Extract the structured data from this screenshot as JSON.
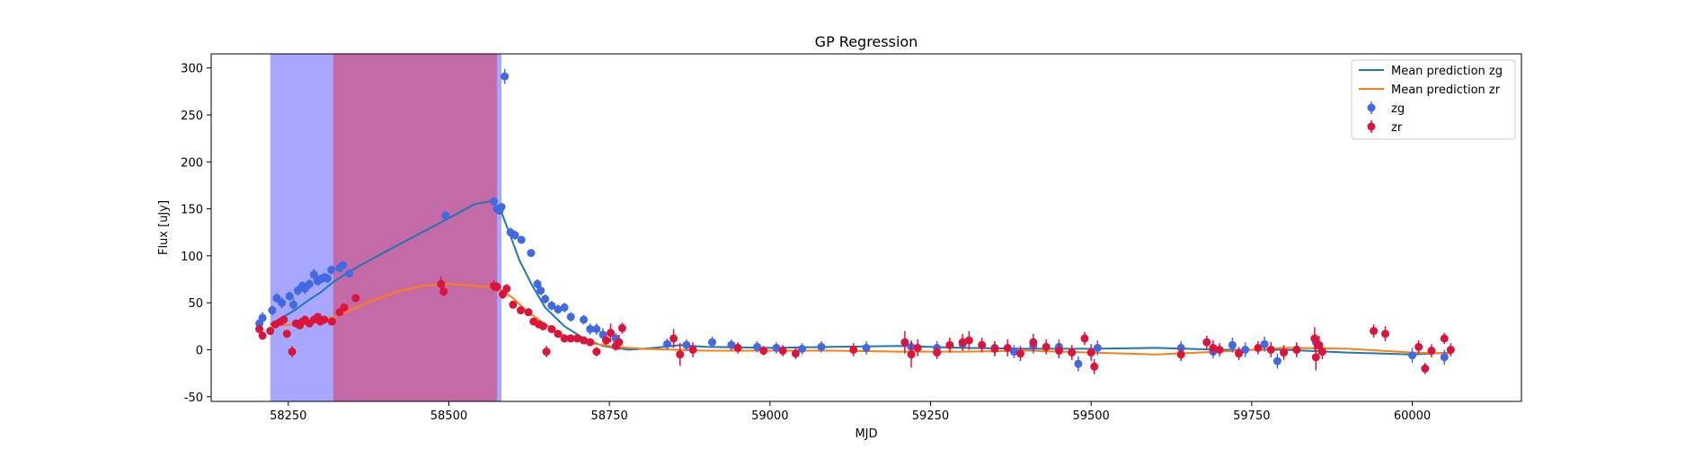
{
  "chart_data": {
    "type": "scatter",
    "title": "GP Regression",
    "xlabel": "MJD",
    "ylabel": "Flux [uJy]",
    "xlim": [
      58130,
      60170
    ],
    "ylim": [
      -55,
      315
    ],
    "xticks": [
      58250,
      58500,
      58750,
      59000,
      59250,
      59500,
      59750,
      60000
    ],
    "yticks": [
      -50,
      0,
      50,
      100,
      150,
      200,
      250,
      300
    ],
    "grid": false,
    "legend_position": "top-right",
    "shaded_regions": [
      {
        "x0": 58222,
        "x1": 58582,
        "color": "#a7a7ff"
      },
      {
        "x0": 58320,
        "x1": 58575,
        "color": "#c46aa6"
      }
    ],
    "series": [
      {
        "name": "Mean prediction zg",
        "kind": "line",
        "color": "#1f77b4",
        "x": [
          58222,
          58240,
          58260,
          58280,
          58300,
          58320,
          58340,
          58360,
          58400,
          58450,
          58500,
          58540,
          58565,
          58580,
          58595,
          58610,
          58630,
          58650,
          58680,
          58710,
          58740,
          58780,
          58820,
          58860,
          58900,
          59000,
          59100,
          59200,
          59300,
          59400,
          59500,
          59600,
          59650,
          59700,
          59800,
          59900,
          60000,
          60060
        ],
        "y": [
          27,
          34,
          42,
          52,
          61,
          72,
          81,
          89,
          104,
          122,
          140,
          155,
          158,
          150,
          123,
          95,
          68,
          45,
          25,
          12,
          4,
          0,
          2,
          5,
          3,
          2,
          3,
          4,
          2,
          1,
          1,
          2,
          1,
          0,
          0,
          -3,
          -5,
          -3
        ]
      },
      {
        "name": "Mean prediction zr",
        "kind": "line",
        "color": "#ff7f0e",
        "x": [
          58222,
          58260,
          58300,
          58340,
          58380,
          58420,
          58460,
          58500,
          58540,
          58570,
          58585,
          58600,
          58620,
          58650,
          58680,
          58720,
          58760,
          58800,
          58900,
          59000,
          59100,
          59200,
          59300,
          59400,
          59500,
          59600,
          59700,
          59800,
          59900,
          60000,
          60060
        ],
        "y": [
          25,
          27,
          30,
          40,
          52,
          62,
          68,
          70,
          68,
          66,
          62,
          55,
          42,
          27,
          15,
          7,
          3,
          1,
          -1,
          -1,
          -1,
          -2,
          -2,
          -1,
          -3,
          -5,
          -2,
          2,
          1,
          -3,
          -4
        ]
      },
      {
        "name": "zg",
        "kind": "errorbar-points",
        "color": "#4169e1",
        "x": [
          58205,
          58210,
          58225,
          58232,
          58240,
          58252,
          58258,
          58265,
          58272,
          58276,
          58283,
          58290,
          58296,
          58300,
          58306,
          58311,
          58317,
          58330,
          58335,
          58345,
          58495,
          58570,
          58575,
          58579,
          58582,
          58587,
          58596,
          58603,
          58613,
          58628,
          58638,
          58643,
          58650,
          58660,
          58670,
          58680,
          58690,
          58710,
          58720,
          58730,
          58740,
          58760,
          58840,
          58870,
          58910,
          58940,
          58980,
          59010,
          59050,
          59080,
          59150,
          59220,
          59260,
          59300,
          59350,
          59380,
          59410,
          59450,
          59480,
          59510,
          59640,
          59690,
          59720,
          59740,
          59770,
          59790,
          59820,
          59850,
          60000,
          60050
        ],
        "y": [
          28,
          34,
          42,
          55,
          50,
          57,
          48,
          63,
          68,
          65,
          70,
          80,
          73,
          75,
          77,
          76,
          85,
          87,
          90,
          81,
          143,
          158,
          150,
          148,
          152,
          291,
          125,
          122,
          117,
          103,
          70,
          63,
          54,
          47,
          43,
          45,
          35,
          32,
          22,
          22,
          16,
          12,
          6,
          5,
          8,
          5,
          3,
          2,
          1,
          3,
          2,
          3,
          2,
          6,
          2,
          -2,
          4,
          3,
          -15,
          2,
          2,
          -2,
          5,
          0,
          6,
          -12,
          0,
          8,
          -6,
          -8
        ],
        "yerr": [
          8,
          6,
          5,
          5,
          6,
          5,
          7,
          5,
          5,
          6,
          5,
          6,
          5,
          5,
          5,
          5,
          5,
          4,
          4,
          4,
          3,
          4,
          4,
          4,
          4,
          8,
          5,
          5,
          4,
          4,
          5,
          5,
          5,
          5,
          5,
          5,
          5,
          5,
          6,
          6,
          7,
          6,
          6,
          6,
          6,
          6,
          6,
          6,
          6,
          6,
          7,
          7,
          7,
          7,
          7,
          7,
          8,
          8,
          8,
          8,
          7,
          7,
          8,
          8,
          8,
          8,
          8,
          8,
          8,
          8
        ]
      },
      {
        "name": "zr",
        "kind": "errorbar-points",
        "color": "#dc143c",
        "x": [
          58205,
          58210,
          58222,
          58230,
          58238,
          58243,
          58248,
          58256,
          58262,
          58268,
          58272,
          58276,
          58283,
          58290,
          58296,
          58300,
          58306,
          58318,
          58330,
          58337,
          58355,
          58488,
          58492,
          58570,
          58575,
          58584,
          58590,
          58600,
          58612,
          58624,
          58632,
          58640,
          58647,
          58652,
          58660,
          58670,
          58680,
          58690,
          58700,
          58710,
          58720,
          58730,
          58745,
          58752,
          58760,
          58765,
          58770,
          58850,
          58860,
          58880,
          58950,
          58990,
          59020,
          59040,
          59130,
          59210,
          59220,
          59230,
          59260,
          59280,
          59300,
          59310,
          59330,
          59350,
          59370,
          59390,
          59410,
          59430,
          59450,
          59470,
          59490,
          59500,
          59505,
          59640,
          59680,
          59690,
          59700,
          59730,
          59760,
          59780,
          59800,
          59820,
          59848,
          59850,
          59855,
          59860,
          59940,
          59958,
          60010,
          60020,
          60030,
          60050,
          60060
        ],
        "y": [
          22,
          15,
          20,
          27,
          30,
          32,
          17,
          -2,
          28,
          26,
          30,
          32,
          28,
          32,
          35,
          30,
          32,
          30,
          40,
          45,
          55,
          70,
          62,
          68,
          67,
          59,
          65,
          48,
          42,
          40,
          30,
          27,
          25,
          -2,
          22,
          17,
          12,
          12,
          12,
          10,
          8,
          -2,
          10,
          18,
          4,
          8,
          23,
          12,
          -5,
          0,
          2,
          -1,
          -1,
          -4,
          0,
          8,
          -5,
          2,
          -3,
          5,
          8,
          10,
          5,
          1,
          2,
          -4,
          8,
          3,
          -1,
          -3,
          12,
          -3,
          -18,
          -5,
          8,
          2,
          0,
          -4,
          2,
          0,
          -3,
          0,
          12,
          -8,
          5,
          -2,
          20,
          17,
          3,
          -20,
          -1,
          12,
          0
        ],
        "yerr": [
          4,
          3,
          4,
          3,
          3,
          3,
          4,
          6,
          3,
          3,
          3,
          3,
          3,
          3,
          3,
          3,
          3,
          3,
          3,
          3,
          3,
          8,
          5,
          6,
          5,
          5,
          5,
          4,
          4,
          4,
          4,
          4,
          4,
          6,
          4,
          4,
          4,
          4,
          4,
          4,
          4,
          5,
          5,
          10,
          5,
          8,
          6,
          10,
          12,
          8,
          6,
          5,
          6,
          6,
          7,
          12,
          14,
          9,
          7,
          8,
          9,
          10,
          8,
          8,
          9,
          8,
          9,
          8,
          8,
          8,
          7,
          9,
          8,
          7,
          7,
          8,
          7,
          7,
          7,
          8,
          8,
          7,
          12,
          14,
          10,
          8,
          7,
          8,
          7,
          6,
          7,
          6,
          7
        ]
      }
    ]
  }
}
